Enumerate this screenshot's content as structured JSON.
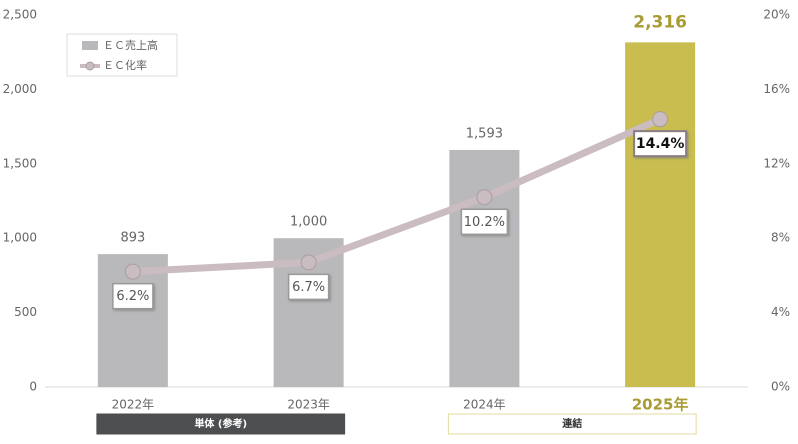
{
  "chart_data": {
    "type": "bar-line",
    "categories": [
      "2022年",
      "2023年",
      "2024年",
      "2025年"
    ],
    "series": [
      {
        "name": "ＥＣ売上高",
        "type": "bar",
        "color": "#b9b9bc",
        "colors": [
          "#b9b9bc",
          "#b9b9bc",
          "#b9b9bc",
          "#c8bd4e"
        ],
        "values": [
          893,
          1000,
          1593,
          2316
        ],
        "value_labels": [
          "893",
          "1,000",
          "1,593",
          "2,316"
        ]
      },
      {
        "name": "ＥＣ化率",
        "type": "line",
        "axis": "y2",
        "color": "#cbbcc1",
        "values": [
          6.2,
          6.7,
          10.2,
          14.4
        ],
        "value_labels": [
          "6.2%",
          "6.7%",
          "10.2%",
          "14.4%"
        ]
      }
    ],
    "ylim": [
      0,
      2500
    ],
    "yticks": [
      0,
      500,
      {
        "value": 1000,
        "label": "1,000"
      },
      {
        "value": 1500,
        "label": "1,500"
      },
      {
        "value": 2000,
        "label": "2,000"
      },
      {
        "value": 2500,
        "label": "2,500"
      }
    ],
    "y2lim": [
      0,
      20
    ],
    "y2ticks": [
      {
        "value": 0,
        "label": "0%"
      },
      {
        "value": 4,
        "label": "4%"
      },
      {
        "value": 8,
        "label": "8%"
      },
      {
        "value": 12,
        "label": "12%"
      },
      {
        "value": 16,
        "label": "16%"
      },
      {
        "value": 20,
        "label": "20%"
      }
    ],
    "legend": "upper left",
    "groups": [
      {
        "label": "単体 (参考)",
        "color": "#4d4e50"
      },
      {
        "label": "連結",
        "color": "#ffffff"
      }
    ]
  }
}
